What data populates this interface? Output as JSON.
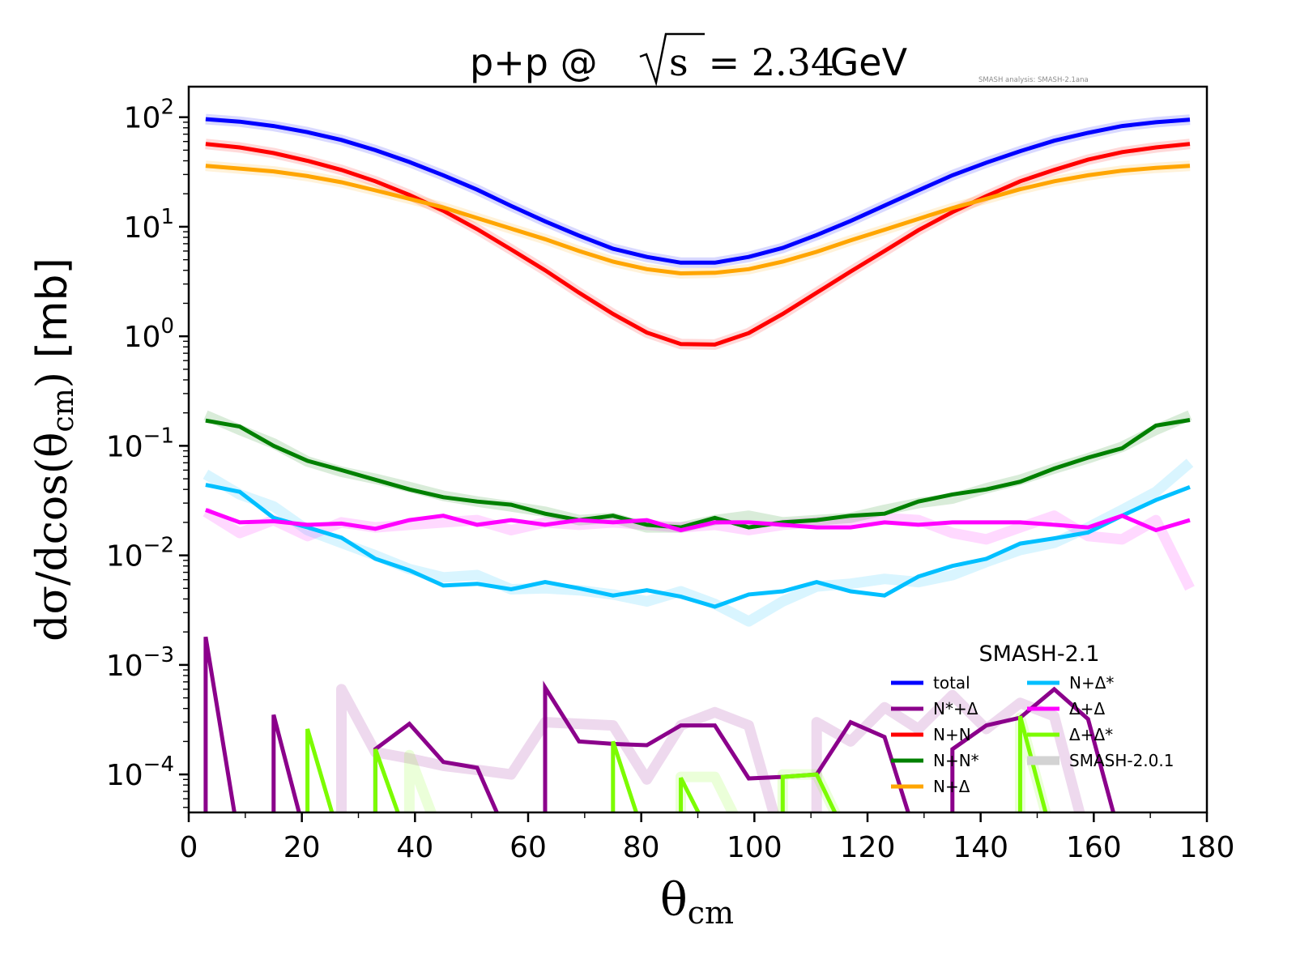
{
  "chart_data": {
    "type": "line",
    "title": {
      "prefix": "p+p @ ",
      "sqrt_symbol": "√",
      "radicand": "s",
      "equals_value": " = 2.34",
      "suffix": " GeV"
    },
    "annotation": "SMASH analysis: SMASH-2.1ana",
    "xlabel": "θ",
    "xlabel_sub": "cm",
    "ylabel": {
      "main": "dσ/dcos(θ",
      "sub": "cm",
      "close": ")",
      "unit": " [mb]"
    },
    "xlim": [
      0,
      180
    ],
    "ylim": [
      4.5e-05,
      190
    ],
    "yscale": "log",
    "grid": false,
    "x_ticks": [
      "0",
      "20",
      "40",
      "60",
      "80",
      "100",
      "120",
      "140",
      "160",
      "180"
    ],
    "y_ticks": [
      {
        "base": "10",
        "exp": "2",
        "value": 100
      },
      {
        "base": "10",
        "exp": "1",
        "value": 10
      },
      {
        "base": "10",
        "exp": "0",
        "value": 1
      },
      {
        "base": "10",
        "exp": "−1",
        "value": 0.1
      },
      {
        "base": "10",
        "exp": "−2",
        "value": 0.01
      },
      {
        "base": "10",
        "exp": "−3",
        "value": 0.001
      },
      {
        "base": "10",
        "exp": "−4",
        "value": 0.0001
      }
    ],
    "legend": {
      "title": "SMASH-2.1",
      "placement": "lower-right",
      "entries": [
        {
          "label": "total",
          "color": "#0000ff"
        },
        {
          "label": "N*+Δ",
          "color": "#8b008b"
        },
        {
          "label": "N+N",
          "color": "#ff0000"
        },
        {
          "label": "N+N*",
          "color": "#008000"
        },
        {
          "label": "N+Δ",
          "color": "#ffa500"
        },
        {
          "label": "N+Δ*",
          "color": "#00bfff"
        },
        {
          "label": "Δ+Δ",
          "color": "#ff00ff"
        },
        {
          "label": "Δ+Δ*",
          "color": "#7cfc00"
        },
        {
          "label": "SMASH-2.0.1",
          "color": "#d3d3d3"
        }
      ]
    },
    "x": [
      3,
      9,
      15,
      21,
      27,
      33,
      39,
      45,
      51,
      57,
      63,
      69,
      75,
      81,
      87,
      93,
      99,
      105,
      111,
      117,
      123,
      129,
      135,
      141,
      147,
      153,
      159,
      165,
      171,
      177
    ],
    "series": [
      {
        "name": "total",
        "color": "#0000ff",
        "values": [
          96,
          91,
          83,
          73,
          62,
          50,
          39,
          29.5,
          21.8,
          15.5,
          11.2,
          8.3,
          6.3,
          5.3,
          4.7,
          4.7,
          5.3,
          6.4,
          8.4,
          11.3,
          15.6,
          21.5,
          29.5,
          38.5,
          49,
          61,
          72,
          83,
          90,
          95
        ]
      },
      {
        "name": "N+N",
        "color": "#ff0000",
        "values": [
          57,
          53,
          47,
          40,
          33,
          26,
          19.5,
          14,
          9.5,
          6.2,
          4.0,
          2.5,
          1.6,
          1.08,
          0.85,
          0.84,
          1.07,
          1.6,
          2.5,
          3.9,
          6.0,
          9.3,
          13.6,
          19,
          26,
          33,
          41,
          48,
          53,
          57
        ]
      },
      {
        "name": "N+Δ",
        "color": "#ffa500",
        "values": [
          36,
          34,
          32,
          29,
          25.5,
          21.5,
          18,
          15,
          12,
          9.6,
          7.7,
          6.0,
          4.8,
          4.1,
          3.75,
          3.8,
          4.1,
          4.8,
          5.9,
          7.5,
          9.4,
          11.8,
          14.8,
          18,
          22,
          26,
          29.5,
          32.5,
          34.5,
          36
        ]
      },
      {
        "name": "N+N*",
        "color": "#008000",
        "values": [
          0.17,
          0.15,
          0.1,
          0.073,
          0.06,
          0.049,
          0.04,
          0.034,
          0.031,
          0.029,
          0.024,
          0.021,
          0.023,
          0.019,
          0.018,
          0.022,
          0.018,
          0.02,
          0.021,
          0.023,
          0.024,
          0.031,
          0.036,
          0.04,
          0.047,
          0.062,
          0.078,
          0.095,
          0.153,
          0.172
        ]
      },
      {
        "name": "N+Δ*",
        "color": "#00bfff",
        "values": [
          0.044,
          0.038,
          0.022,
          0.018,
          0.0145,
          0.0093,
          0.0073,
          0.0053,
          0.0055,
          0.0049,
          0.0057,
          0.005,
          0.0043,
          0.0048,
          0.0042,
          0.0034,
          0.0044,
          0.0047,
          0.0057,
          0.0047,
          0.0043,
          0.0064,
          0.008,
          0.0093,
          0.0128,
          0.0143,
          0.0162,
          0.023,
          0.032,
          0.042
        ]
      },
      {
        "name": "Δ+Δ",
        "color": "#ff00ff",
        "values": [
          0.026,
          0.02,
          0.0205,
          0.019,
          0.0195,
          0.0175,
          0.021,
          0.023,
          0.019,
          0.021,
          0.019,
          0.021,
          0.02,
          0.021,
          0.017,
          0.02,
          0.02,
          0.019,
          0.018,
          0.018,
          0.02,
          0.019,
          0.02,
          0.02,
          0.02,
          0.019,
          0.018,
          0.023,
          0.017,
          0.021
        ]
      },
      {
        "name": "N*+Δ",
        "color": "#8b008b",
        "values": [
          0.0018,
          null,
          0.00035,
          null,
          null,
          0.00017,
          0.00029,
          0.00013,
          0.000115,
          null,
          0.00062,
          0.0002,
          0.00019,
          0.000185,
          0.00028,
          0.00028,
          9.2e-05,
          9.5e-05,
          0.0001,
          0.0003,
          0.00022,
          null,
          0.00017,
          0.00028,
          0.00033,
          0.0006,
          0.00032,
          null,
          null,
          null
        ]
      },
      {
        "name": "Δ+Δ*",
        "color": "#7cfc00",
        "values": [
          null,
          null,
          null,
          0.00026,
          null,
          0.00017,
          null,
          null,
          null,
          null,
          null,
          null,
          0.0002,
          null,
          9.3e-05,
          null,
          null,
          9.5e-05,
          0.0001,
          null,
          null,
          null,
          null,
          null,
          0.00034,
          null,
          null,
          null,
          null,
          null
        ]
      },
      {
        "name": "total (SMASH-2.0.1)",
        "color": "#0000ff",
        "reference": true,
        "values": [
          96,
          91,
          83,
          73,
          62,
          50,
          39,
          29.5,
          21.8,
          15.5,
          11.2,
          8.3,
          6.3,
          5.3,
          4.7,
          4.7,
          5.3,
          6.4,
          8.4,
          11.3,
          15.6,
          21.5,
          29.5,
          38.5,
          49,
          61,
          72,
          83,
          90,
          95
        ]
      },
      {
        "name": "N+N (SMASH-2.0.1)",
        "color": "#ff0000",
        "reference": true,
        "values": [
          57,
          53,
          47,
          40,
          33,
          26,
          19.5,
          14,
          9.5,
          6.2,
          4.0,
          2.5,
          1.6,
          1.08,
          0.85,
          0.84,
          1.07,
          1.6,
          2.5,
          3.9,
          6.0,
          9.3,
          13.6,
          19,
          26,
          33,
          41,
          48,
          53,
          57
        ]
      },
      {
        "name": "N+Δ (SMASH-2.0.1)",
        "color": "#ffa500",
        "reference": true,
        "values": [
          36,
          34,
          32,
          29,
          25.5,
          21.5,
          18,
          15,
          12,
          9.6,
          7.7,
          6.0,
          4.8,
          4.1,
          3.75,
          3.8,
          4.1,
          4.8,
          5.9,
          7.5,
          9.4,
          11.8,
          14.8,
          18,
          22,
          26,
          29.5,
          32.5,
          34.5,
          36
        ]
      },
      {
        "name": "N+N* (SMASH-2.0.1)",
        "color": "#008000",
        "reference": true,
        "values": [
          0.19,
          0.14,
          0.105,
          0.072,
          0.058,
          0.05,
          0.042,
          0.035,
          0.031,
          0.028,
          0.025,
          0.021,
          0.022,
          0.018,
          0.018,
          0.021,
          0.023,
          0.02,
          0.021,
          0.022,
          0.026,
          0.03,
          0.033,
          0.041,
          0.049,
          0.062,
          0.077,
          0.098,
          0.14,
          0.19
        ]
      },
      {
        "name": "N+Δ* (SMASH-2.0.1)",
        "color": "#00bfff",
        "reference": true,
        "values": [
          0.055,
          0.036,
          0.028,
          0.017,
          0.013,
          0.01,
          0.0075,
          0.0063,
          0.0066,
          0.0049,
          0.005,
          0.0048,
          0.0044,
          0.0038,
          0.0047,
          0.0036,
          0.0025,
          0.0038,
          0.0052,
          0.0055,
          0.0061,
          0.0057,
          0.0066,
          0.0087,
          0.0112,
          0.013,
          0.018,
          0.026,
          0.038,
          0.07
        ]
      },
      {
        "name": "Δ+Δ (SMASH-2.0.1)",
        "color": "#ff00ff",
        "reference": true,
        "values": [
          0.025,
          0.016,
          0.021,
          0.015,
          0.02,
          0.018,
          0.019,
          0.02,
          0.021,
          0.017,
          0.02,
          0.019,
          0.02,
          0.019,
          0.018,
          0.019,
          0.017,
          0.019,
          0.02,
          0.021,
          0.022,
          0.021,
          0.016,
          0.014,
          0.018,
          0.023,
          0.015,
          0.014,
          0.021,
          0.005
        ]
      },
      {
        "name": "N*+Δ (SMASH-2.0.1)",
        "color": "#8b008b",
        "reference": true,
        "values": [
          null,
          null,
          null,
          null,
          0.0006,
          0.00016,
          0.00014,
          0.00012,
          0.00011,
          0.0001,
          0.0003,
          0.00029,
          0.00028,
          9e-05,
          0.00028,
          0.00037,
          0.00028,
          null,
          0.0003,
          0.0002,
          0.00041,
          0.00026,
          0.00053,
          0.00026,
          0.00045,
          0.00034,
          null,
          null,
          null,
          null
        ]
      },
      {
        "name": "Δ+Δ* (SMASH-2.0.1)",
        "color": "#7cfc00",
        "reference": true,
        "values": [
          null,
          null,
          null,
          null,
          null,
          null,
          0.00015,
          null,
          null,
          null,
          null,
          null,
          null,
          null,
          9.5e-05,
          9.5e-05,
          null,
          0.0001,
          0.0001,
          null,
          null,
          null,
          null,
          null,
          0.00033,
          null,
          null,
          null,
          null,
          null
        ]
      }
    ]
  }
}
